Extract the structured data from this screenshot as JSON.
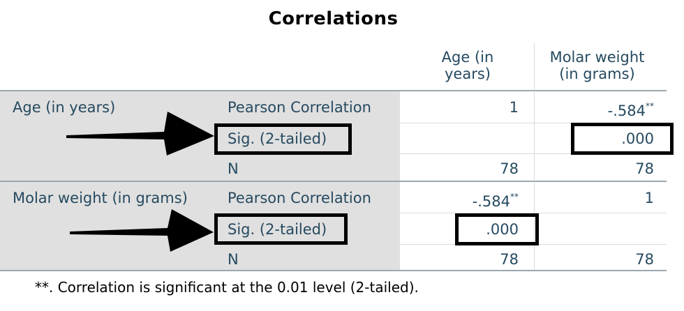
{
  "title": "Correlations",
  "columns": [
    "Age (in\nyears)",
    "Molar weight\n(in grams)"
  ],
  "col_header_age_line1": "Age (in",
  "col_header_age_line2": "years)",
  "col_header_molar_line1": "Molar weight",
  "col_header_molar_line2": "(in grams)",
  "rows": [
    {
      "variable": "Age (in years)",
      "pearson_label": "Pearson Correlation",
      "sig_label": "Sig. (2-tailed)",
      "n_label": "N",
      "pearson": [
        "1",
        "-.584"
      ],
      "pearson_marker": [
        "",
        "**"
      ],
      "sig": [
        "",
        ".000"
      ],
      "n": [
        "78",
        "78"
      ]
    },
    {
      "variable": "Molar weight (in grams)",
      "pearson_label": "Pearson Correlation",
      "sig_label": "Sig. (2-tailed)",
      "n_label": "N",
      "pearson": [
        "-.584",
        "1"
      ],
      "pearson_marker": [
        "**",
        ""
      ],
      "sig": [
        ".000",
        ""
      ],
      "n": [
        "78",
        "78"
      ]
    }
  ],
  "footnote": "**. Correlation is significant at the 0.01 level (2-tailed).",
  "colors": {
    "text": "#264a60",
    "shade": "#e0e0e0",
    "highlight_box": "#000000"
  }
}
